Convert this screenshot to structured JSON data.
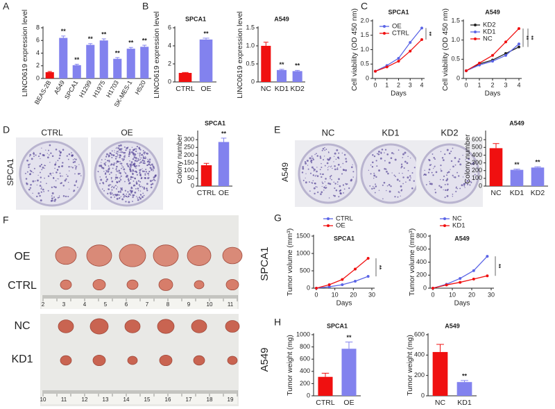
{
  "figure": {
    "panels": [
      "A",
      "B",
      "C",
      "D",
      "E",
      "F",
      "G",
      "H"
    ],
    "d_labels": [
      "CTRL",
      "OE"
    ],
    "d_cell": "SPCA1",
    "e_labels": [
      "NC",
      "KD1",
      "KD2"
    ],
    "e_cell": "A549",
    "f_labels": [
      "OE",
      "CTRL",
      "NC",
      "KD1"
    ],
    "f_ruler_top": [
      2,
      3,
      4,
      5,
      6,
      7,
      8,
      9,
      10,
      11
    ],
    "f_ruler_bottom": [
      10,
      11,
      12,
      13,
      14,
      15,
      16,
      17,
      18,
      19
    ],
    "g_cells": [
      "SPCA1",
      "A549"
    ]
  },
  "chart_data": [
    {
      "type": "bar",
      "ylabel": "LINC0619 expression level",
      "categories": [
        "BEAS-2B",
        "A549",
        "SPCA1",
        "H1299",
        "H1975",
        "H1703",
        "SK-MES-1",
        "H520"
      ],
      "values": [
        1.0,
        6.4,
        2.1,
        5.3,
        6.0,
        3.1,
        4.7,
        5.0
      ],
      "errors": [
        0.1,
        0.3,
        0.15,
        0.2,
        0.25,
        0.2,
        0.2,
        0.25
      ],
      "colors": [
        "#f01010",
        "#8282ee",
        "#8282ee",
        "#8282ee",
        "#8282ee",
        "#8282ee",
        "#8282ee",
        "#8282ee"
      ],
      "significance": [
        null,
        "**",
        "**",
        "**",
        "**",
        "**",
        "**",
        "**"
      ],
      "ylim": [
        0,
        8
      ],
      "yticks": [
        0,
        2,
        4,
        6,
        8
      ]
    },
    {
      "type": "bar",
      "title": "SPCA1",
      "ylabel": "LINC0619 expression level",
      "categories": [
        "CTRL",
        "OE"
      ],
      "values": [
        1.0,
        4.7
      ],
      "errors": [
        0.05,
        0.15
      ],
      "colors": [
        "#f01010",
        "#8282ee"
      ],
      "significance": [
        null,
        "**"
      ],
      "ylim": [
        0,
        6
      ],
      "yticks": [
        0,
        2,
        4,
        6
      ]
    },
    {
      "type": "bar",
      "title": "A549",
      "ylabel": "LINC0619 expression level",
      "categories": [
        "NC",
        "KD1",
        "KD2"
      ],
      "values": [
        1.0,
        0.33,
        0.3
      ],
      "errors": [
        0.1,
        0.02,
        0.02
      ],
      "colors": [
        "#f01010",
        "#8282ee",
        "#8282ee"
      ],
      "significance": [
        null,
        "**",
        "**"
      ],
      "ylim": [
        0,
        1.5
      ],
      "yticks": [
        0,
        0.5,
        {
          "value": 1,
          "label": "1.0"
        },
        1.5
      ]
    },
    {
      "type": "line",
      "title": "SPCA1",
      "xlabel": "Days",
      "ylabel": "Cell viability (OD 450 nm)",
      "x": [
        0,
        1,
        2,
        3,
        4
      ],
      "xlim": [
        0,
        4
      ],
      "xticks": [
        0,
        1,
        2,
        3,
        4
      ],
      "series": [
        {
          "name": "OE",
          "color": "#5a64e6",
          "values": [
            0.25,
            0.45,
            0.7,
            1.25,
            1.75
          ]
        },
        {
          "name": "CTRL",
          "color": "#f01010",
          "values": [
            0.25,
            0.4,
            0.6,
            0.95,
            1.35
          ]
        }
      ],
      "annotations": [
        "**"
      ],
      "legend": "upper left",
      "ylim": [
        0,
        2
      ],
      "yticks": [
        0,
        0.5,
        {
          "value": 1,
          "label": "1.0"
        },
        1.5,
        {
          "value": 2,
          "label": "2.0"
        }
      ]
    },
    {
      "type": "line",
      "title": "A549",
      "xlabel": "Days",
      "ylabel": "Cell viability (OD 450 nm)",
      "x": [
        0,
        1,
        2,
        3,
        4
      ],
      "xlim": [
        0,
        4
      ],
      "xticks": [
        0,
        1,
        2,
        3,
        4
      ],
      "series": [
        {
          "name": "KD2",
          "color": "#222222",
          "values": [
            0.2,
            0.38,
            0.48,
            0.65,
            0.82
          ]
        },
        {
          "name": "KD1",
          "color": "#5a64e6",
          "values": [
            0.2,
            0.35,
            0.45,
            0.6,
            0.9
          ]
        },
        {
          "name": "NC",
          "color": "#f01010",
          "values": [
            0.2,
            0.4,
            0.6,
            0.95,
            1.3
          ]
        }
      ],
      "annotations": [
        "**",
        "**"
      ],
      "legend": "upper left",
      "ylim": [
        0,
        1.5
      ],
      "yticks": [
        0,
        0.5,
        {
          "value": 1,
          "label": "1.0"
        },
        1.5
      ]
    },
    {
      "type": "bar",
      "title": "SPCA1",
      "ylabel": "Colony number",
      "categories": [
        "CTRL",
        "OE"
      ],
      "values": [
        135,
        285
      ],
      "errors": [
        12,
        25
      ],
      "colors": [
        "#f01010",
        "#8282ee"
      ],
      "significance": [
        null,
        "**"
      ],
      "ylim": [
        0,
        350
      ],
      "yticks": [
        0,
        50,
        100,
        150,
        200,
        250,
        300
      ]
    },
    {
      "type": "bar",
      "title": "A549",
      "ylabel": "Colony number",
      "categories": [
        "NC",
        "KD1",
        "KD2"
      ],
      "values": [
        490,
        210,
        240
      ],
      "errors": [
        60,
        10,
        10
      ],
      "colors": [
        "#f01010",
        "#8282ee",
        "#8282ee"
      ],
      "significance": [
        null,
        "**",
        "**"
      ],
      "ylim": [
        0,
        700
      ],
      "yticks": [
        0,
        100,
        200,
        300,
        400,
        500,
        600
      ]
    },
    {
      "type": "line",
      "title": "SPCA1",
      "xlabel": "Days",
      "ylabel": "Tumor volume (mm³)",
      "x": [
        0,
        7,
        14,
        21,
        28
      ],
      "xlim": [
        0,
        30
      ],
      "xticks": [
        0,
        10,
        20,
        30
      ],
      "series": [
        {
          "name": "CTRL",
          "color": "#5a64e6",
          "values": [
            0,
            40,
            100,
            200,
            340
          ]
        },
        {
          "name": "OE",
          "color": "#f01010",
          "values": [
            0,
            100,
            250,
            550,
            860
          ]
        }
      ],
      "annotations": [
        "**"
      ],
      "legend": "upper left",
      "ylim": [
        0,
        1500
      ],
      "yticks": [
        0,
        500,
        1000,
        1500
      ]
    },
    {
      "type": "line",
      "title": "A549",
      "xlabel": "Days",
      "ylabel": "Tumor volume (mm³)",
      "x": [
        0,
        7,
        14,
        21,
        28
      ],
      "xlim": [
        0,
        30
      ],
      "xticks": [
        0,
        10,
        20,
        30
      ],
      "series": [
        {
          "name": "NC",
          "color": "#5a64e6",
          "values": [
            0,
            60,
            150,
            270,
            490
          ]
        },
        {
          "name": "KD1",
          "color": "#f01010",
          "values": [
            0,
            50,
            90,
            140,
            190
          ]
        }
      ],
      "annotations": [
        "**"
      ],
      "legend": "upper left",
      "ylim": [
        0,
        800
      ],
      "yticks": [
        0,
        200,
        400,
        600,
        800
      ]
    },
    {
      "type": "bar",
      "title": "SPCA1",
      "ylabel": "Tumor weight (mg)",
      "categories": [
        "CTRL",
        "OE"
      ],
      "values": [
        310,
        770
      ],
      "errors": [
        60,
        110
      ],
      "colors": [
        "#f01010",
        "#8282ee"
      ],
      "significance": [
        null,
        "**"
      ],
      "ylim": [
        0,
        1000
      ],
      "yticks": [
        0,
        200,
        400,
        600,
        800,
        1000
      ]
    },
    {
      "type": "bar",
      "title": "A549",
      "ylabel": "Tumor weight (mg)",
      "categories": [
        "NC",
        "KD1"
      ],
      "values": [
        430,
        135
      ],
      "errors": [
        75,
        15
      ],
      "colors": [
        "#f01010",
        "#8282ee"
      ],
      "significance": [
        null,
        "**"
      ],
      "ylim": [
        0,
        600
      ],
      "yticks": [
        0,
        200,
        400,
        600
      ]
    }
  ]
}
